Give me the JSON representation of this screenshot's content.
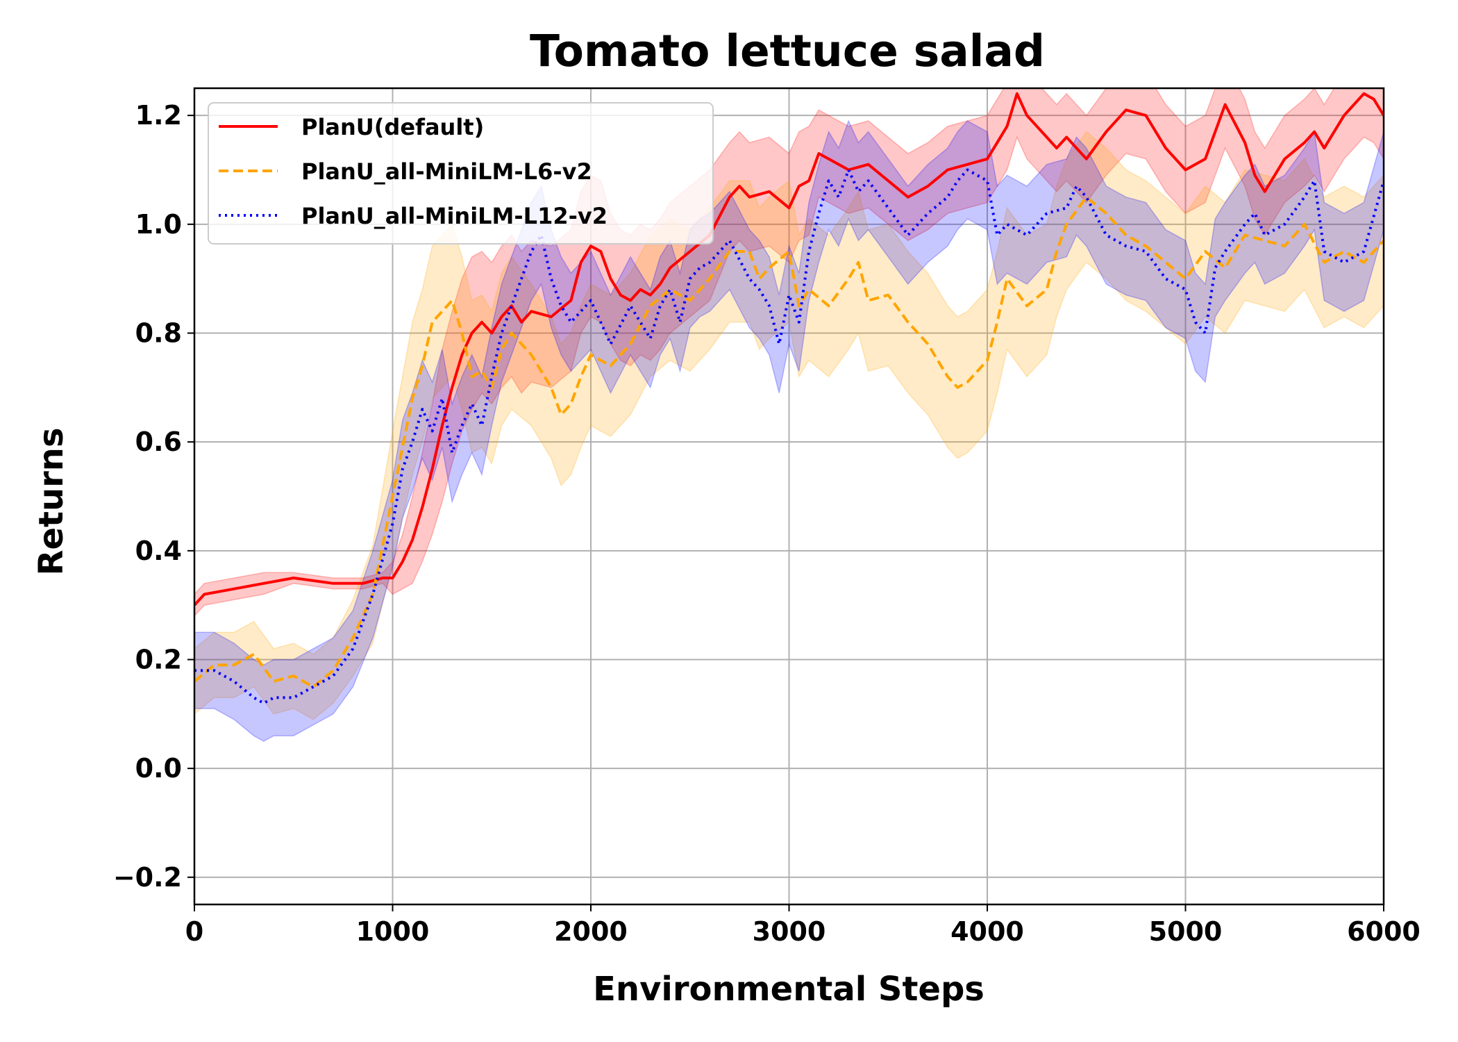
{
  "chart_data": {
    "type": "line",
    "title": "Tomato lettuce salad",
    "xlabel": "Environmental Steps",
    "ylabel": "Returns",
    "xlim": [
      0,
      6000
    ],
    "ylim": [
      -0.25,
      1.25
    ],
    "xticks": [
      0,
      1000,
      2000,
      3000,
      4000,
      5000,
      6000
    ],
    "xtick_labels": [
      "0",
      "1000",
      "2000",
      "3000",
      "4000",
      "5000",
      "6000"
    ],
    "yticks": [
      -0.2,
      0.0,
      0.2,
      0.4,
      0.6,
      0.8,
      1.0,
      1.2
    ],
    "ytick_labels": [
      "−0.2",
      "0.0",
      "0.2",
      "0.4",
      "0.6",
      "0.8",
      "1.0",
      "1.2"
    ],
    "grid": true,
    "legend_position": "top-left",
    "series": [
      {
        "name": "PlanU(default)",
        "color": "#ff0000",
        "linestyle": "solid",
        "x": [
          0,
          50,
          200,
          350,
          500,
          700,
          850,
          950,
          1000,
          1050,
          1100,
          1150,
          1200,
          1250,
          1300,
          1350,
          1400,
          1450,
          1500,
          1550,
          1600,
          1650,
          1700,
          1800,
          1900,
          1950,
          2000,
          2050,
          2100,
          2150,
          2200,
          2250,
          2300,
          2350,
          2400,
          2500,
          2600,
          2700,
          2750,
          2800,
          2900,
          3000,
          3050,
          3100,
          3150,
          3200,
          3300,
          3400,
          3500,
          3600,
          3700,
          3800,
          3900,
          4000,
          4050,
          4100,
          4150,
          4200,
          4300,
          4350,
          4400,
          4500,
          4600,
          4700,
          4800,
          4850,
          4900,
          5000,
          5100,
          5200,
          5300,
          5350,
          5400,
          5500,
          5600,
          5650,
          5700,
          5800,
          5850,
          5900,
          5950,
          6000
        ],
        "values": [
          0.3,
          0.32,
          0.33,
          0.34,
          0.35,
          0.34,
          0.34,
          0.35,
          0.35,
          0.38,
          0.42,
          0.48,
          0.55,
          0.63,
          0.7,
          0.76,
          0.8,
          0.82,
          0.8,
          0.83,
          0.85,
          0.82,
          0.84,
          0.83,
          0.86,
          0.93,
          0.96,
          0.95,
          0.9,
          0.87,
          0.86,
          0.88,
          0.87,
          0.89,
          0.92,
          0.95,
          0.98,
          1.05,
          1.07,
          1.05,
          1.06,
          1.03,
          1.07,
          1.08,
          1.13,
          1.12,
          1.1,
          1.11,
          1.08,
          1.05,
          1.07,
          1.1,
          1.11,
          1.12,
          1.15,
          1.18,
          1.24,
          1.2,
          1.16,
          1.14,
          1.16,
          1.12,
          1.17,
          1.21,
          1.2,
          1.17,
          1.14,
          1.1,
          1.12,
          1.22,
          1.15,
          1.09,
          1.06,
          1.12,
          1.15,
          1.17,
          1.14,
          1.2,
          1.22,
          1.24,
          1.23,
          1.2
        ],
        "band": [
          0.02,
          0.02,
          0.02,
          0.02,
          0.01,
          0.01,
          0.01,
          0.01,
          0.03,
          0.05,
          0.08,
          0.1,
          0.12,
          0.14,
          0.14,
          0.14,
          0.14,
          0.13,
          0.13,
          0.13,
          0.13,
          0.13,
          0.13,
          0.13,
          0.13,
          0.13,
          0.13,
          0.13,
          0.12,
          0.12,
          0.12,
          0.12,
          0.12,
          0.12,
          0.12,
          0.12,
          0.12,
          0.1,
          0.1,
          0.1,
          0.1,
          0.1,
          0.1,
          0.1,
          0.08,
          0.08,
          0.08,
          0.08,
          0.08,
          0.08,
          0.08,
          0.08,
          0.08,
          0.08,
          0.08,
          0.08,
          0.08,
          0.08,
          0.08,
          0.08,
          0.08,
          0.08,
          0.08,
          0.08,
          0.08,
          0.08,
          0.08,
          0.08,
          0.08,
          0.08,
          0.08,
          0.08,
          0.08,
          0.08,
          0.08,
          0.08,
          0.08,
          0.08,
          0.08,
          0.08,
          0.08,
          0.08
        ]
      },
      {
        "name": "PlanU_all-MiniLM-L6-v2",
        "color": "#ffa500",
        "linestyle": "dashed",
        "x": [
          0,
          100,
          200,
          300,
          400,
          500,
          600,
          700,
          800,
          900,
          1000,
          1100,
          1150,
          1200,
          1250,
          1300,
          1350,
          1400,
          1450,
          1500,
          1550,
          1600,
          1700,
          1800,
          1850,
          1900,
          1950,
          2000,
          2100,
          2200,
          2300,
          2400,
          2500,
          2600,
          2700,
          2800,
          2850,
          2900,
          3000,
          3050,
          3100,
          3200,
          3300,
          3350,
          3400,
          3500,
          3600,
          3700,
          3800,
          3850,
          3900,
          4000,
          4050,
          4100,
          4200,
          4300,
          4350,
          4400,
          4500,
          4600,
          4700,
          4800,
          4900,
          5000,
          5100,
          5200,
          5300,
          5400,
          5500,
          5600,
          5700,
          5800,
          5900,
          6000
        ],
        "values": [
          0.16,
          0.19,
          0.19,
          0.21,
          0.16,
          0.17,
          0.15,
          0.18,
          0.24,
          0.32,
          0.5,
          0.68,
          0.74,
          0.82,
          0.84,
          0.86,
          0.8,
          0.72,
          0.73,
          0.7,
          0.77,
          0.8,
          0.76,
          0.7,
          0.65,
          0.67,
          0.72,
          0.76,
          0.74,
          0.78,
          0.85,
          0.88,
          0.86,
          0.9,
          0.95,
          0.95,
          0.9,
          0.92,
          0.95,
          0.85,
          0.88,
          0.85,
          0.9,
          0.93,
          0.86,
          0.87,
          0.82,
          0.78,
          0.72,
          0.7,
          0.71,
          0.75,
          0.82,
          0.9,
          0.85,
          0.88,
          0.95,
          1.0,
          1.05,
          1.02,
          0.98,
          0.96,
          0.93,
          0.9,
          0.95,
          0.92,
          0.98,
          0.97,
          0.96,
          1.0,
          0.93,
          0.95,
          0.93,
          0.97
        ],
        "band": [
          0.06,
          0.06,
          0.06,
          0.06,
          0.06,
          0.06,
          0.06,
          0.06,
          0.07,
          0.09,
          0.12,
          0.14,
          0.14,
          0.14,
          0.14,
          0.14,
          0.14,
          0.14,
          0.14,
          0.14,
          0.14,
          0.14,
          0.13,
          0.13,
          0.13,
          0.13,
          0.13,
          0.13,
          0.13,
          0.13,
          0.13,
          0.13,
          0.13,
          0.13,
          0.13,
          0.13,
          0.13,
          0.13,
          0.13,
          0.13,
          0.13,
          0.13,
          0.13,
          0.13,
          0.13,
          0.13,
          0.13,
          0.13,
          0.13,
          0.13,
          0.13,
          0.13,
          0.13,
          0.13,
          0.13,
          0.12,
          0.12,
          0.12,
          0.12,
          0.12,
          0.12,
          0.12,
          0.12,
          0.12,
          0.12,
          0.12,
          0.12,
          0.12,
          0.12,
          0.12,
          0.12,
          0.12,
          0.12,
          0.12
        ]
      },
      {
        "name": "PlanU_all-MiniLM-L12-v2",
        "color": "#0000ff",
        "linestyle": "dotted",
        "x": [
          0,
          100,
          200,
          300,
          350,
          400,
          500,
          600,
          700,
          800,
          900,
          1000,
          1050,
          1100,
          1150,
          1200,
          1250,
          1300,
          1350,
          1400,
          1450,
          1500,
          1550,
          1600,
          1650,
          1700,
          1750,
          1800,
          1850,
          1900,
          2000,
          2100,
          2200,
          2250,
          2300,
          2350,
          2400,
          2450,
          2500,
          2550,
          2600,
          2700,
          2800,
          2850,
          2900,
          2950,
          3000,
          3050,
          3100,
          3150,
          3200,
          3250,
          3300,
          3350,
          3400,
          3500,
          3600,
          3700,
          3800,
          3850,
          3900,
          4000,
          4050,
          4100,
          4200,
          4300,
          4400,
          4450,
          4500,
          4600,
          4700,
          4800,
          4900,
          5000,
          5050,
          5100,
          5150,
          5200,
          5300,
          5350,
          5400,
          5500,
          5600,
          5650,
          5700,
          5800,
          5900,
          6000
        ],
        "values": [
          0.18,
          0.18,
          0.16,
          0.13,
          0.12,
          0.13,
          0.13,
          0.15,
          0.17,
          0.22,
          0.32,
          0.45,
          0.55,
          0.6,
          0.66,
          0.62,
          0.68,
          0.58,
          0.63,
          0.67,
          0.63,
          0.72,
          0.8,
          0.85,
          0.9,
          0.95,
          0.98,
          0.9,
          0.85,
          0.82,
          0.86,
          0.78,
          0.85,
          0.82,
          0.79,
          0.85,
          0.88,
          0.82,
          0.9,
          0.92,
          0.93,
          0.97,
          0.9,
          0.88,
          0.85,
          0.78,
          0.87,
          0.82,
          0.95,
          1.02,
          1.08,
          1.05,
          1.1,
          1.06,
          1.08,
          1.03,
          0.98,
          1.02,
          1.05,
          1.08,
          1.1,
          1.08,
          0.98,
          1.0,
          0.98,
          1.02,
          1.03,
          1.07,
          1.05,
          0.98,
          0.96,
          0.95,
          0.9,
          0.88,
          0.82,
          0.8,
          0.92,
          0.95,
          1.0,
          1.02,
          0.98,
          1.0,
          1.05,
          1.08,
          0.95,
          0.93,
          0.95,
          1.08
        ],
        "band": [
          0.07,
          0.07,
          0.07,
          0.07,
          0.07,
          0.07,
          0.07,
          0.07,
          0.07,
          0.07,
          0.08,
          0.08,
          0.09,
          0.09,
          0.09,
          0.09,
          0.09,
          0.09,
          0.09,
          0.09,
          0.09,
          0.09,
          0.09,
          0.09,
          0.09,
          0.09,
          0.09,
          0.09,
          0.09,
          0.09,
          0.09,
          0.09,
          0.09,
          0.09,
          0.09,
          0.09,
          0.09,
          0.09,
          0.09,
          0.09,
          0.09,
          0.09,
          0.09,
          0.09,
          0.09,
          0.09,
          0.09,
          0.09,
          0.09,
          0.09,
          0.09,
          0.09,
          0.09,
          0.09,
          0.09,
          0.09,
          0.09,
          0.09,
          0.09,
          0.09,
          0.09,
          0.09,
          0.09,
          0.09,
          0.09,
          0.09,
          0.09,
          0.09,
          0.09,
          0.09,
          0.09,
          0.09,
          0.09,
          0.09,
          0.09,
          0.09,
          0.09,
          0.09,
          0.09,
          0.09,
          0.09,
          0.09,
          0.09,
          0.09,
          0.09,
          0.09,
          0.09,
          0.09
        ]
      }
    ]
  }
}
